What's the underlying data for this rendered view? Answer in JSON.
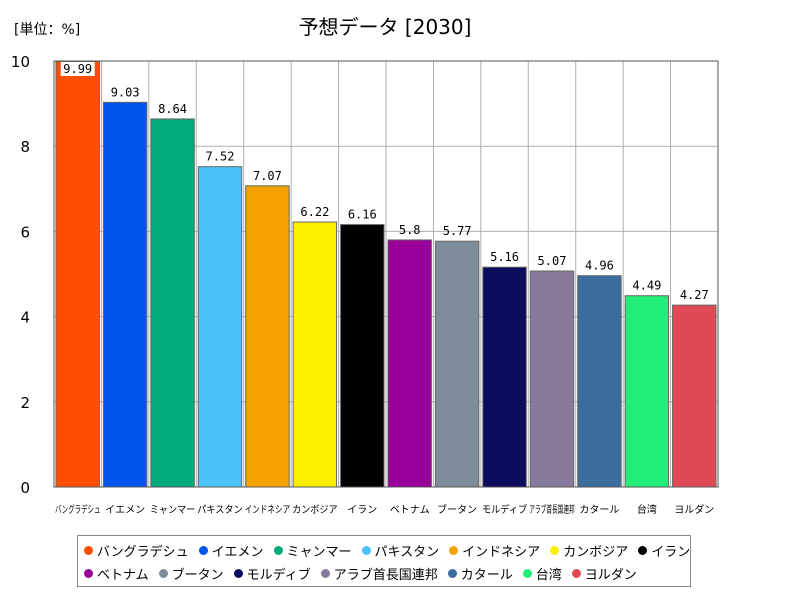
{
  "chart_data": {
    "type": "bar",
    "title": "予想データ [2030]",
    "unit_label": "[単位：%]",
    "xlabel": "",
    "ylabel": "",
    "ylim": [
      0,
      10
    ],
    "yticks": [
      "0",
      "2",
      "4",
      "6",
      "8",
      "10"
    ],
    "grid": true,
    "legend_position": "bottom",
    "categories": [
      "バングラデシュ",
      "イエメン",
      "ミャンマー",
      "パキスタン",
      "インドネシア",
      "カンボジア",
      "イラン",
      "ベトナム",
      "ブータン",
      "モルディブ",
      "アラブ首長国連邦",
      "カタール",
      "台湾",
      "ヨルダン"
    ],
    "values": [
      9.99,
      9.03,
      8.64,
      7.52,
      7.07,
      6.22,
      6.16,
      5.8,
      5.77,
      5.16,
      5.07,
      4.96,
      4.49,
      4.27
    ],
    "value_labels": [
      "9.99",
      "9.03",
      "8.64",
      "7.52",
      "7.07",
      "6.22",
      "6.16",
      "5.8",
      "5.77",
      "5.16",
      "5.07",
      "4.96",
      "4.49",
      "4.27"
    ],
    "colors": [
      "#ff4e00",
      "#0055ee",
      "#00aa7a",
      "#4cc3f8",
      "#f5a100",
      "#fff000",
      "#000000",
      "#990099",
      "#7f8c99",
      "#0c0c5c",
      "#877a9c",
      "#3a6d9e",
      "#20ee78",
      "#e04a56"
    ]
  }
}
